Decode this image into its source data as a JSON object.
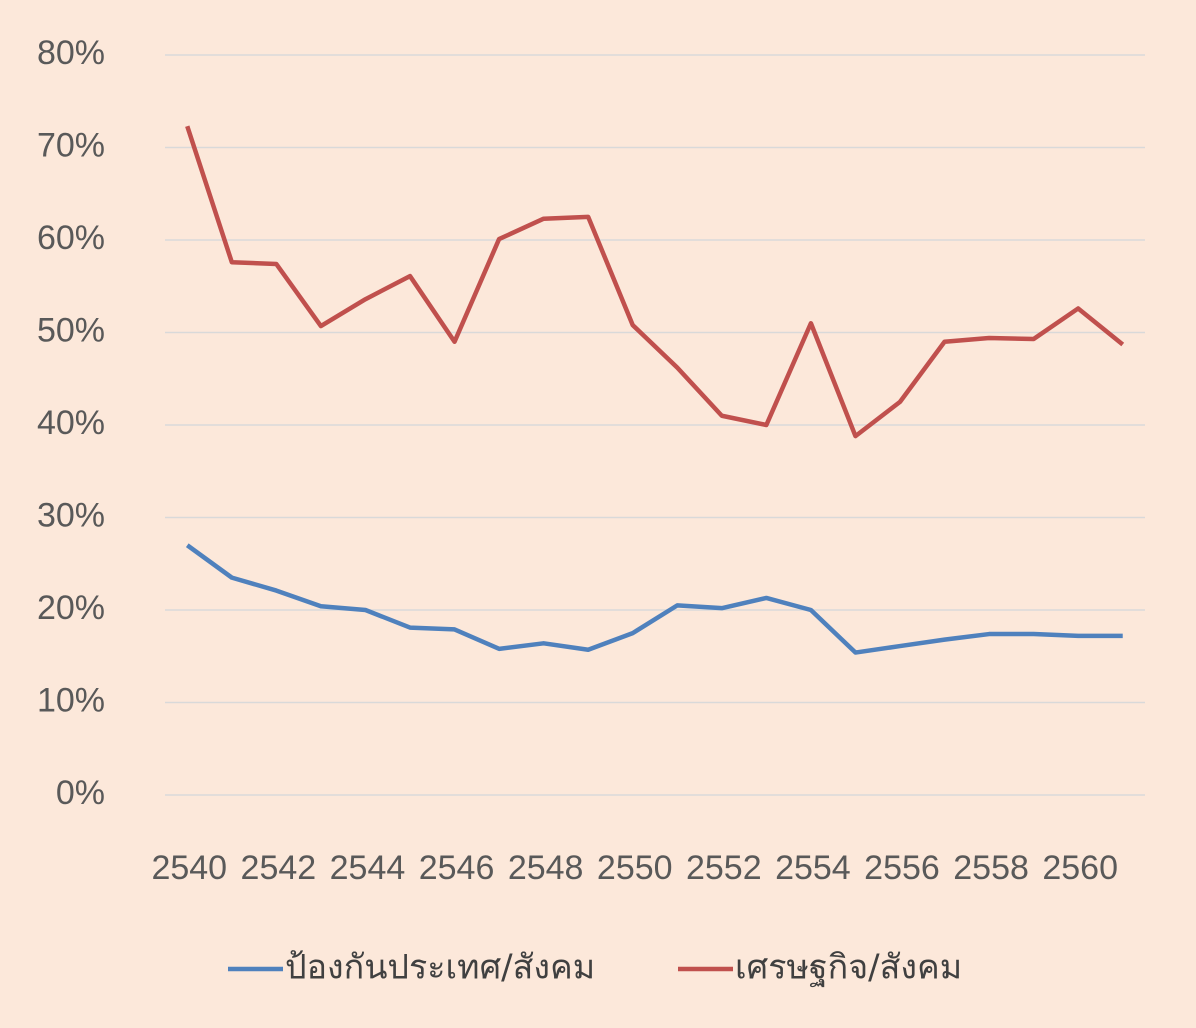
{
  "chart_data": {
    "type": "line",
    "categories": [
      "2540",
      null,
      "2542",
      null,
      "2544",
      null,
      "2546",
      null,
      "2548",
      null,
      "2550",
      null,
      "2552",
      null,
      "2554",
      null,
      "2556",
      null,
      "2558",
      null,
      "2560",
      null
    ],
    "series": [
      {
        "name": "ป้องกันประเทศ/สังคม",
        "color": "#4f81bd",
        "values": [
          27,
          23.5,
          22.1,
          20.4,
          20,
          18.1,
          17.9,
          15.8,
          16.4,
          15.7,
          17.5,
          20.5,
          20.2,
          21.3,
          20,
          15.4,
          16.1,
          16.8,
          17.4,
          17.4,
          17.2,
          17.2
        ]
      },
      {
        "name": "เศรษฐกิจ/สังคม",
        "color": "#c0504d",
        "values": [
          72.3,
          57.6,
          57.4,
          50.7,
          53.6,
          56.1,
          49,
          60.1,
          62.3,
          62.5,
          50.8,
          46.2,
          41,
          40,
          51,
          38.8,
          42.5,
          49,
          49.4,
          49.3,
          52.6,
          48.7
        ]
      }
    ],
    "ylim": [
      0,
      80
    ],
    "yticks": [
      {
        "value": 0,
        "label": "0%"
      },
      {
        "value": 10,
        "label": "10%"
      },
      {
        "value": 20,
        "label": "20%"
      },
      {
        "value": 30,
        "label": "30%"
      },
      {
        "value": 40,
        "label": "40%"
      },
      {
        "value": 50,
        "label": "50%"
      },
      {
        "value": 60,
        "label": "60%"
      },
      {
        "value": 70,
        "label": "70%"
      },
      {
        "value": 80,
        "label": "80%"
      }
    ],
    "grid": true,
    "legend": "bottom",
    "background": "#fce8da"
  }
}
